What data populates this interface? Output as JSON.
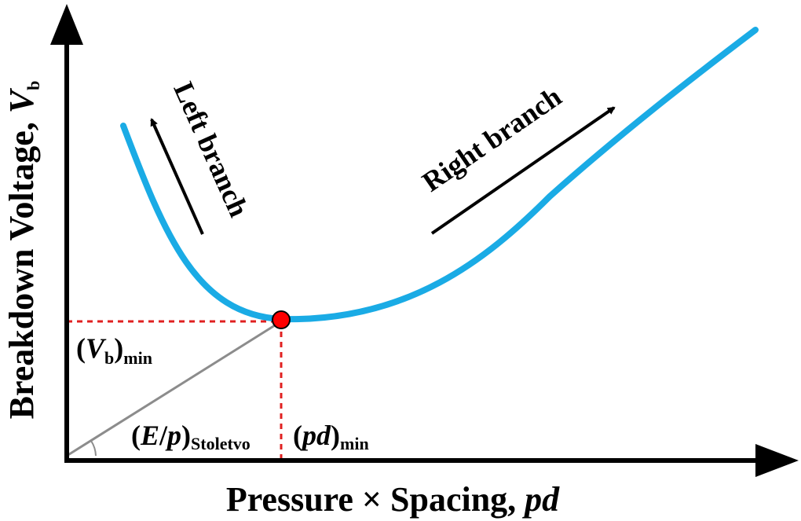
{
  "axes": {
    "x_label": {
      "text": "Pressure × Spacing, ",
      "var": "pd"
    },
    "y_label": {
      "text": "Breakdown Voltage, ",
      "var": "V",
      "sub": "b"
    }
  },
  "annotations": {
    "left_branch": "Left branch",
    "right_branch": "Right branch",
    "vb_min": {
      "open": "(",
      "var": "V",
      "sub1": "b",
      "close": ")",
      "sub2": "min"
    },
    "e_over_p": {
      "open": "(",
      "var1": "E",
      "slash": "/",
      "var2": "p",
      "close": ")",
      "sub": "Stoletvo"
    },
    "pd_min": {
      "open": "(",
      "var": "pd",
      "close": ")",
      "sub": "min"
    }
  },
  "colors": {
    "curve": "#1AABE5",
    "guide": "#E02020",
    "tangent": "#8C8C8C",
    "minimum_point": "#FF0000",
    "axis": "#000000"
  },
  "icons": [
    "x-axis-arrow-icon",
    "y-axis-arrow-icon",
    "left-branch-arrow-icon",
    "right-branch-arrow-icon",
    "minimum-point-marker-icon"
  ]
}
